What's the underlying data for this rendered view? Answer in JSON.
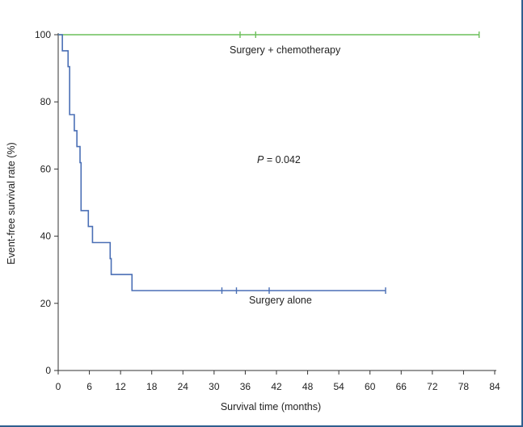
{
  "chart_data": {
    "type": "line",
    "title": "",
    "xlabel": "Survival time (months)",
    "ylabel": "Event-free survival rate (%)",
    "xlim": [
      0,
      84
    ],
    "ylim": [
      0,
      100
    ],
    "x_ticks": [
      0,
      6,
      12,
      18,
      24,
      30,
      36,
      42,
      48,
      54,
      60,
      66,
      72,
      78,
      84
    ],
    "y_ticks": [
      0,
      20,
      40,
      60,
      80,
      100
    ],
    "grid": false,
    "series": [
      {
        "name": "Surgery + chemotherapy",
        "color": "#6cbf5a",
        "steps": [
          [
            0,
            100
          ],
          [
            81,
            100
          ]
        ],
        "censored_x": [
          35,
          38,
          81
        ]
      },
      {
        "name": "Surgery alone",
        "color": "#4a6fb5",
        "steps": [
          [
            0,
            100
          ],
          [
            0.8,
            95.2
          ],
          [
            1.9,
            90.5
          ],
          [
            2.2,
            76.2
          ],
          [
            3.1,
            71.4
          ],
          [
            3.6,
            66.7
          ],
          [
            4.2,
            61.9
          ],
          [
            4.4,
            47.6
          ],
          [
            5.8,
            42.9
          ],
          [
            6.6,
            38.1
          ],
          [
            10,
            33.3
          ],
          [
            10.2,
            28.6
          ],
          [
            14.2,
            23.8
          ],
          [
            63,
            23.8
          ]
        ],
        "censored_x": [
          31.5,
          34.3,
          40.6,
          63
        ]
      }
    ],
    "annotations": {
      "p_prefix": "P",
      "p_value": " = 0.042",
      "label_chemo": "Surgery + chemotherapy",
      "label_alone": "Surgery alone"
    }
  }
}
